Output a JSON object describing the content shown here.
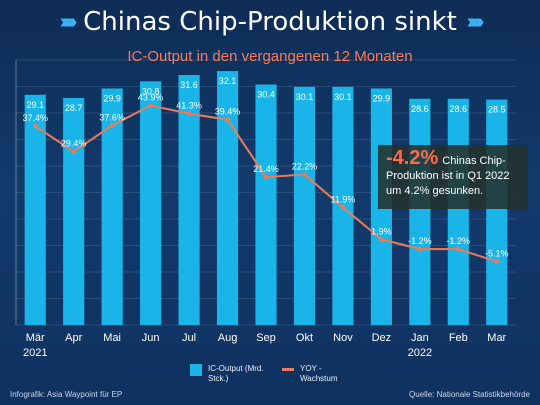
{
  "header": {
    "title": "Chinas Chip-Produktion sinkt",
    "subtitle": "IC-Output in den vergangenen 12 Monaten"
  },
  "callout": {
    "value": "-4.2%",
    "text": "Chinas Chip-Produktion  ist in Q1 2022 um 4.2% gesunken."
  },
  "legend": {
    "bar_label": "IC-Output (Mrd. Stck.)",
    "line_label": "YOY - Wachstum"
  },
  "footer": {
    "left": "Infografik: Asia Waypoint für EP",
    "right": "Quelle: Nationale Statistikbehörde"
  },
  "colors": {
    "bar": "#19b4e8",
    "line": "#f07a55",
    "accent": "#ff6b4a",
    "title_chevrons": "#3fb6ff"
  },
  "chart_data": {
    "type": "bar",
    "categories": [
      "Mär",
      "Apr",
      "Mai",
      "Jun",
      "Jul",
      "Aug",
      "Sep",
      "Okt",
      "Nov",
      "Dez",
      "Jan",
      "Feb",
      "Mar"
    ],
    "year_labels": [
      "2021",
      "2022"
    ],
    "series": [
      {
        "name": "IC-Output (Mrd. Stck.)",
        "type": "bar",
        "values": [
          29.1,
          28.7,
          29.9,
          30.8,
          31.6,
          32.1,
          30.4,
          30.1,
          30.1,
          29.9,
          28.6,
          28.6,
          28.5
        ],
        "value_labels": [
          "29.1",
          "28.7",
          "29.9",
          "30.8",
          "31.6",
          "32.1",
          "30.4",
          "30.1",
          "30.1",
          "29.9",
          "28.6",
          "28.6",
          "28.5"
        ]
      },
      {
        "name": "YOY - Wachstum",
        "type": "line",
        "values": [
          37.4,
          29.4,
          37.6,
          43.9,
          41.3,
          39.4,
          21.4,
          22.2,
          11.9,
          1.9,
          -1.2,
          -1.2,
          -5.1
        ],
        "value_labels": [
          "37.4%",
          "29.4%",
          "37.6%",
          "43.9%",
          "41.3%",
          "39.4%",
          "21.4%",
          "22.2%",
          "11.9%",
          "1.9%",
          "-1.2%",
          "-1.2%",
          "-5.1%"
        ]
      }
    ],
    "grid": true,
    "legend_position": "bottom-center"
  }
}
